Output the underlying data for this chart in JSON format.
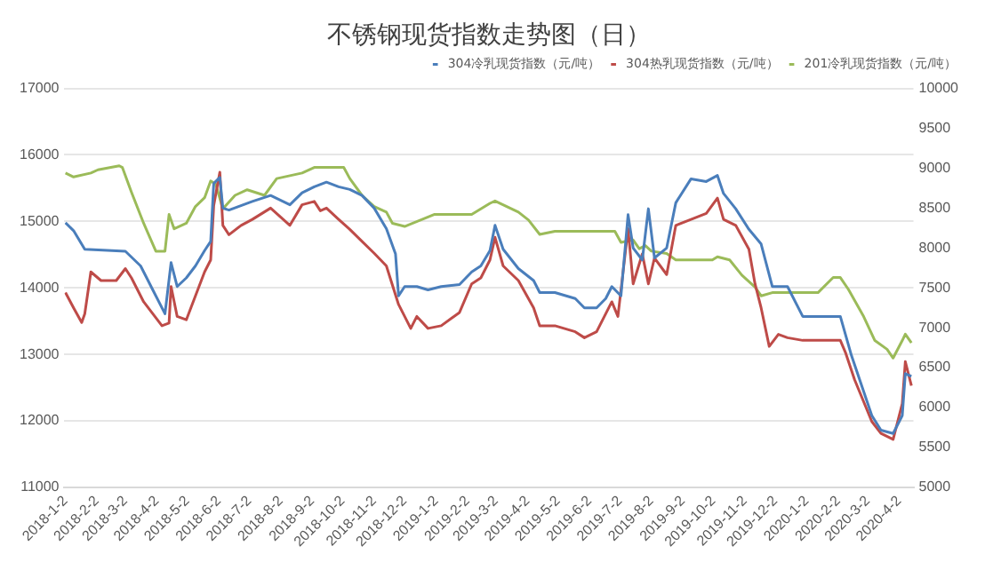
{
  "chart_data": {
    "type": "line",
    "title": "不锈钢现货指数走势图（日）",
    "legend": "top right",
    "grid": "y",
    "marker": "none",
    "line_style": "solid",
    "ylim": [
      11000,
      17000
    ],
    "yticks": [
      11000,
      12000,
      13000,
      14000,
      15000,
      16000,
      17000
    ],
    "y2lim": [
      5000,
      10000
    ],
    "y2ticks": [
      5000,
      5500,
      6000,
      6500,
      7000,
      7500,
      8000,
      8500,
      9000,
      9500,
      10000
    ],
    "xlim": [
      "2018-01-01",
      "2020-04-16"
    ],
    "xticks": [
      {
        "value": "2018-01-02",
        "label": "2018-1-2"
      },
      {
        "value": "2018-02-02",
        "label": "2018-2-2"
      },
      {
        "value": "2018-03-02",
        "label": "2018-3-2"
      },
      {
        "value": "2018-04-02",
        "label": "2018-4-2"
      },
      {
        "value": "2018-05-02",
        "label": "2018-5-2"
      },
      {
        "value": "2018-06-02",
        "label": "2018-6-2"
      },
      {
        "value": "2018-07-02",
        "label": "2018-7-2"
      },
      {
        "value": "2018-08-02",
        "label": "2018-8-2"
      },
      {
        "value": "2018-09-02",
        "label": "2018-9-2"
      },
      {
        "value": "2018-10-02",
        "label": "2018-10-2"
      },
      {
        "value": "2018-11-02",
        "label": "2018-11-2"
      },
      {
        "value": "2018-12-02",
        "label": "2018-12-2"
      },
      {
        "value": "2019-01-02",
        "label": "2019-1-2"
      },
      {
        "value": "2019-02-02",
        "label": "2019-2-2"
      },
      {
        "value": "2019-03-02",
        "label": "2019-3-2"
      },
      {
        "value": "2019-04-02",
        "label": "2019-4-2"
      },
      {
        "value": "2019-05-02",
        "label": "2019-5-2"
      },
      {
        "value": "2019-06-02",
        "label": "2019-6-2"
      },
      {
        "value": "2019-07-02",
        "label": "2019-7-2"
      },
      {
        "value": "2019-08-02",
        "label": "2019-8-2"
      },
      {
        "value": "2019-09-02",
        "label": "2019-9-2"
      },
      {
        "value": "2019-10-02",
        "label": "2019-10-2"
      },
      {
        "value": "2019-11-02",
        "label": "2019-11-2"
      },
      {
        "value": "2019-12-02",
        "label": "2019-12-2"
      },
      {
        "value": "2020-01-02",
        "label": "2020-1-2"
      },
      {
        "value": "2020-02-02",
        "label": "2020-2-2"
      },
      {
        "value": "2020-03-02",
        "label": "2020-3-2"
      },
      {
        "value": "2020-04-02",
        "label": "2020-4-2"
      }
    ],
    "series": [
      {
        "name": "304冷乳现货指数（元/吨）",
        "color": "#4a7ebb",
        "x": [
          "2018-01-02",
          "2018-01-10",
          "2018-01-21",
          "2018-03-02",
          "2018-03-17",
          "2018-03-29",
          "2018-04-10",
          "2018-04-16",
          "2018-04-22",
          "2018-05-01",
          "2018-05-10",
          "2018-05-19",
          "2018-05-25",
          "2018-05-28",
          "2018-06-03",
          "2018-06-06",
          "2018-06-12",
          "2018-07-05",
          "2018-07-23",
          "2018-08-11",
          "2018-08-23",
          "2018-09-04",
          "2018-09-16",
          "2018-09-28",
          "2018-10-09",
          "2018-10-21",
          "2018-11-02",
          "2018-11-14",
          "2018-11-23",
          "2018-11-26",
          "2018-12-02",
          "2018-12-14",
          "2018-12-25",
          "2019-01-07",
          "2019-01-25",
          "2019-02-06",
          "2019-02-15",
          "2019-02-24",
          "2019-03-01",
          "2019-03-09",
          "2019-03-24",
          "2019-04-08",
          "2019-04-14",
          "2019-04-29",
          "2019-05-19",
          "2019-05-28",
          "2019-06-09",
          "2019-06-18",
          "2019-06-24",
          "2019-07-03",
          "2019-07-10",
          "2019-07-15",
          "2019-07-24",
          "2019-07-30",
          "2019-08-05",
          "2019-08-17",
          "2019-08-26",
          "2019-09-10",
          "2019-09-25",
          "2019-10-06",
          "2019-10-12",
          "2019-10-24",
          "2019-11-06",
          "2019-11-18",
          "2019-11-29",
          "2019-12-14",
          "2019-12-29",
          "2020-02-04",
          "2020-02-15",
          "2020-02-27",
          "2020-03-06",
          "2020-03-15",
          "2020-03-27",
          "2020-04-05",
          "2020-04-08",
          "2020-04-14"
        ],
        "values": [
          14980,
          14860,
          14580,
          14550,
          14330,
          13970,
          13610,
          14380,
          14020,
          14150,
          14330,
          14560,
          14700,
          15570,
          15660,
          15200,
          15170,
          15300,
          15390,
          15250,
          15430,
          15520,
          15590,
          15520,
          15480,
          15390,
          15200,
          14890,
          14510,
          13880,
          14020,
          14020,
          13970,
          14020,
          14050,
          14240,
          14330,
          14560,
          14940,
          14580,
          14290,
          14110,
          13930,
          13930,
          13840,
          13700,
          13700,
          13840,
          14020,
          13880,
          15100,
          14600,
          14420,
          15190,
          14450,
          14600,
          15280,
          15640,
          15600,
          15690,
          15420,
          15190,
          14880,
          14660,
          14020,
          14020,
          13570,
          13570,
          12980,
          12440,
          12080,
          11860,
          11810,
          12080,
          12710,
          12670
        ]
      },
      {
        "name": "304热乳现货指数（元/吨）",
        "color": "#be4b48",
        "x": [
          "2018-01-02",
          "2018-01-10",
          "2018-01-18",
          "2018-01-21",
          "2018-01-27",
          "2018-02-06",
          "2018-02-21",
          "2018-03-02",
          "2018-03-08",
          "2018-03-20",
          "2018-03-29",
          "2018-04-07",
          "2018-04-14",
          "2018-04-16",
          "2018-04-22",
          "2018-05-01",
          "2018-05-10",
          "2018-05-19",
          "2018-05-25",
          "2018-05-28",
          "2018-06-03",
          "2018-06-06",
          "2018-06-12",
          "2018-06-24",
          "2018-07-05",
          "2018-07-23",
          "2018-08-11",
          "2018-08-23",
          "2018-09-04",
          "2018-09-10",
          "2018-09-16",
          "2018-09-28",
          "2018-10-09",
          "2018-10-21",
          "2018-11-02",
          "2018-11-14",
          "2018-11-26",
          "2018-12-08",
          "2018-12-14",
          "2018-12-25",
          "2019-01-07",
          "2019-01-25",
          "2019-02-06",
          "2019-02-15",
          "2019-02-24",
          "2019-03-01",
          "2019-03-09",
          "2019-03-24",
          "2019-04-08",
          "2019-04-14",
          "2019-04-29",
          "2019-05-19",
          "2019-05-28",
          "2019-06-09",
          "2019-06-18",
          "2019-06-24",
          "2019-06-30",
          "2019-07-10",
          "2019-07-15",
          "2019-07-24",
          "2019-07-30",
          "2019-08-05",
          "2019-08-17",
          "2019-08-26",
          "2019-09-10",
          "2019-09-25",
          "2019-10-06",
          "2019-10-12",
          "2019-10-24",
          "2019-11-06",
          "2019-11-12",
          "2019-11-18",
          "2019-11-26",
          "2019-12-05",
          "2019-12-14",
          "2019-12-29",
          "2020-02-04",
          "2020-02-09",
          "2020-02-18",
          "2020-03-06",
          "2020-03-15",
          "2020-03-27",
          "2020-04-05",
          "2020-04-08",
          "2020-04-14"
        ],
        "values": [
          13930,
          13700,
          13480,
          13610,
          14240,
          14110,
          14110,
          14290,
          14150,
          13790,
          13610,
          13430,
          13470,
          14020,
          13570,
          13520,
          13880,
          14240,
          14420,
          15240,
          15740,
          14940,
          14800,
          14940,
          15030,
          15200,
          14940,
          15250,
          15300,
          15160,
          15200,
          15030,
          14880,
          14700,
          14520,
          14330,
          13750,
          13390,
          13570,
          13390,
          13430,
          13630,
          14060,
          14150,
          14420,
          14760,
          14330,
          14110,
          13700,
          13430,
          13430,
          13340,
          13250,
          13340,
          13610,
          13790,
          13570,
          14890,
          14060,
          14510,
          14060,
          14450,
          14200,
          14940,
          15030,
          15120,
          15350,
          15030,
          14940,
          14580,
          14060,
          13700,
          13120,
          13300,
          13250,
          13210,
          13210,
          13030,
          12620,
          11990,
          11810,
          11720,
          12260,
          12890,
          12530
        ]
      },
      {
        "name": "201冷乳现货指数（元/吨）",
        "color": "#9bbb59",
        "axis": "y2",
        "x": [
          "2018-01-02",
          "2018-01-10",
          "2018-01-27",
          "2018-02-03",
          "2018-02-24",
          "2018-02-27",
          "2018-03-08",
          "2018-03-20",
          "2018-04-01",
          "2018-04-10",
          "2018-04-14",
          "2018-04-19",
          "2018-05-01",
          "2018-05-10",
          "2018-05-19",
          "2018-05-25",
          "2018-05-30",
          "2018-06-06",
          "2018-06-18",
          "2018-06-30",
          "2018-07-17",
          "2018-07-29",
          "2018-08-23",
          "2018-09-04",
          "2018-10-03",
          "2018-10-09",
          "2018-10-21",
          "2018-11-02",
          "2018-11-14",
          "2018-11-20",
          "2018-12-02",
          "2018-12-31",
          "2019-01-13",
          "2019-02-06",
          "2019-02-24",
          "2019-03-01",
          "2019-03-24",
          "2019-04-03",
          "2019-04-14",
          "2019-04-29",
          "2019-06-27",
          "2019-07-03",
          "2019-07-15",
          "2019-07-21",
          "2019-07-27",
          "2019-08-02",
          "2019-08-17",
          "2019-08-26",
          "2019-10-01",
          "2019-10-06",
          "2019-10-18",
          "2019-10-30",
          "2019-11-12",
          "2019-11-18",
          "2019-11-29",
          "2020-01-13",
          "2020-01-28",
          "2020-02-04",
          "2020-02-12",
          "2020-02-27",
          "2020-03-09",
          "2020-03-21",
          "2020-03-27",
          "2020-04-05",
          "2020-04-08",
          "2020-04-14"
        ],
        "values": [
          8940,
          8890,
          8940,
          8980,
          9030,
          9010,
          8700,
          8310,
          7960,
          7960,
          8420,
          8240,
          8310,
          8520,
          8630,
          8840,
          8800,
          8490,
          8660,
          8730,
          8660,
          8870,
          8940,
          9010,
          9010,
          8870,
          8660,
          8520,
          8450,
          8310,
          8270,
          8420,
          8420,
          8420,
          8560,
          8590,
          8450,
          8350,
          8170,
          8210,
          8210,
          8070,
          8100,
          7990,
          8030,
          7960,
          7930,
          7850,
          7850,
          7890,
          7850,
          7660,
          7510,
          7400,
          7440,
          7440,
          7630,
          7630,
          7480,
          7140,
          6840,
          6730,
          6620,
          6840,
          6920,
          6810
        ]
      }
    ]
  }
}
